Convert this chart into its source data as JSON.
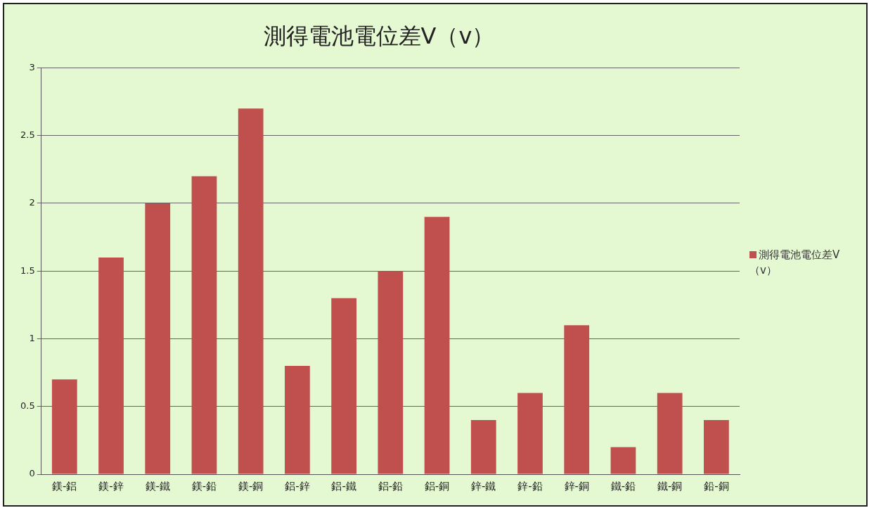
{
  "chart_data": {
    "type": "bar",
    "title": "測得電池電位差V（v）",
    "categories": [
      "鎂-鋁",
      "鎂-鋅",
      "鎂-鐵",
      "鎂-鉛",
      "鎂-銅",
      "鋁-鋅",
      "鋁-鐵",
      "鋁-鉛",
      "鋁-銅",
      "鋅-鐵",
      "鋅-鉛",
      "鋅-銅",
      "鐵-鉛",
      "鐵-銅",
      "鉛-銅"
    ],
    "series": [
      {
        "name": "測得電池電位差V（v）",
        "color": "#c0504d",
        "values": [
          0.7,
          1.6,
          2.0,
          2.2,
          2.7,
          0.8,
          1.3,
          1.5,
          1.9,
          0.4,
          0.6,
          1.1,
          0.2,
          0.6,
          0.4
        ]
      }
    ],
    "ylim": [
      0,
      3
    ],
    "yticks": [
      0,
      0.5,
      1,
      1.5,
      2,
      2.5,
      3
    ],
    "grid": "y",
    "legend": "right"
  }
}
